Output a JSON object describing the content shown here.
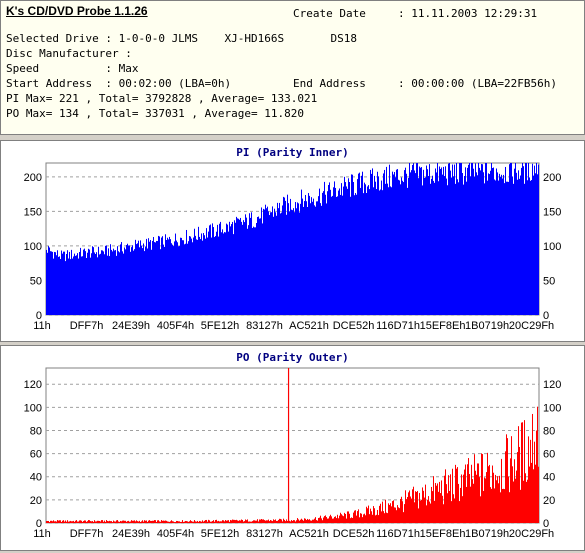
{
  "app": {
    "title": "K's CD/DVD Probe 1.1.26"
  },
  "info": {
    "create_date_label": "Create Date",
    "create_date_value": ": 11.11.2003 12:29:31",
    "drive_line": "Selected Drive : 1-0-0-0 JLMS    XJ-HD166S       DS18",
    "manufacturer_line": "Disc Manufacturer :",
    "speed_line": "Speed          : Max",
    "start_line": "Start Address  : 00:02:00 (LBA=0h)",
    "end_label": "End Address",
    "end_value": ": 00:00:00 (LBA=22FB56h)",
    "pi_line": "PI Max= 221 , Total= 3792828 , Average= 133.021",
    "po_line": "PO Max= 134 , Total= 337031 , Average= 11.820"
  },
  "colors": {
    "pi_series": "#0000ff",
    "po_series": "#ff0000",
    "title_text": "#000080"
  },
  "chart_data": [
    {
      "type": "area",
      "title": "PI (Parity Inner)",
      "x_ticks": [
        "11h",
        "DFF7h",
        "24E39h",
        "405F4h",
        "5FE12h",
        "83127h",
        "AC521h",
        "DCE52h",
        "116D71h",
        "15EF8Eh",
        "1B0719h",
        "20C29Fh"
      ],
      "y_ticks": [
        0,
        50,
        100,
        150,
        200
      ],
      "ylim": [
        0,
        220
      ],
      "grid": true,
      "series": [
        {
          "points": [
            [
              0,
              95
            ],
            [
              0.03,
              85
            ],
            [
              0.08,
              90
            ],
            [
              0.12,
              92
            ],
            [
              0.18,
              100
            ],
            [
              0.24,
              106
            ],
            [
              0.3,
              115
            ],
            [
              0.36,
              125
            ],
            [
              0.42,
              138
            ],
            [
              0.46,
              150
            ],
            [
              0.5,
              162
            ],
            [
              0.55,
              172
            ],
            [
              0.6,
              183
            ],
            [
              0.65,
              192
            ],
            [
              0.7,
              199
            ],
            [
              0.75,
              204
            ],
            [
              0.82,
              206
            ],
            [
              0.9,
              208
            ],
            [
              0.96,
              209
            ],
            [
              0.99,
              212
            ],
            [
              1.0,
              221
            ]
          ],
          "max": 221
        }
      ]
    },
    {
      "type": "area",
      "title": "PO (Parity Outer)",
      "x_ticks": [
        "11h",
        "DFF7h",
        "24E39h",
        "405F4h",
        "5FE12h",
        "83127h",
        "AC521h",
        "DCE52h",
        "116D71h",
        "15EF8Eh",
        "1B0719h",
        "20C29Fh"
      ],
      "y_ticks": [
        0,
        20,
        40,
        60,
        80,
        100,
        120
      ],
      "ylim": [
        0,
        134
      ],
      "grid": true,
      "series": [
        {
          "points": [
            [
              0,
              2
            ],
            [
              0.3,
              2
            ],
            [
              0.5,
              3
            ],
            [
              0.56,
              5
            ],
            [
              0.63,
              9
            ],
            [
              0.7,
              17
            ],
            [
              0.76,
              27
            ],
            [
              0.82,
              38
            ],
            [
              0.88,
              48
            ],
            [
              0.94,
              60
            ],
            [
              0.98,
              75
            ],
            [
              1.0,
              100
            ]
          ],
          "spike": {
            "x": 0.492,
            "y": 134
          },
          "max": 134
        }
      ]
    }
  ]
}
